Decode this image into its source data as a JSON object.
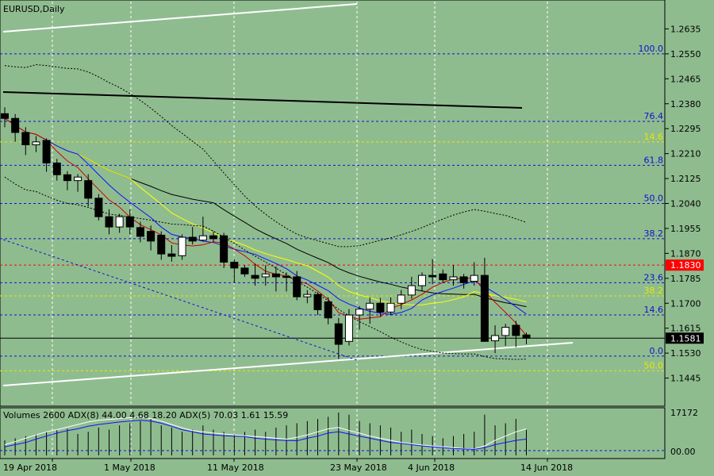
{
  "chart_data": {
    "type": "candlestick",
    "title": "EURUSD,Daily",
    "colors": {
      "background": "#8fbc8f",
      "bull_fill": "#ffffff",
      "bear_fill": "#000000",
      "fib_blue": "#1010d0",
      "fib_yellow": "#e8e800",
      "ma_red": "#d00000",
      "ma_blue": "#1010ff",
      "ma_yellow": "#ffff00",
      "ma_black": "#000000",
      "current_price": "#ff0000",
      "channel": "#ffffff"
    },
    "price_axis": {
      "ticks": [
        "1.2635",
        "1.2550",
        "1.2465",
        "1.2380",
        "1.2295",
        "1.2210",
        "1.2125",
        "1.2040",
        "1.1955",
        "1.1870",
        "1.1785",
        "1.1700",
        "1.1615",
        "1.1530",
        "1.1445"
      ],
      "range": [
        1.136,
        1.272
      ]
    },
    "date_labels": [
      "19 Apr 2018",
      "1 May 2018",
      "11 May 2018",
      "23 May 2018",
      "4 Jun 2018",
      "14 Jun 2018"
    ],
    "candles": [
      {
        "o": 1.2346,
        "h": 1.2368,
        "l": 1.23,
        "c": 1.233
      },
      {
        "o": 1.233,
        "h": 1.2345,
        "l": 1.225,
        "c": 1.2282
      },
      {
        "o": 1.2282,
        "h": 1.23,
        "l": 1.2205,
        "c": 1.224
      },
      {
        "o": 1.224,
        "h": 1.227,
        "l": 1.2215,
        "c": 1.225
      },
      {
        "o": 1.2255,
        "h": 1.2262,
        "l": 1.2148,
        "c": 1.2178
      },
      {
        "o": 1.2178,
        "h": 1.2192,
        "l": 1.2118,
        "c": 1.2138
      },
      {
        "o": 1.2138,
        "h": 1.215,
        "l": 1.2085,
        "c": 1.2118
      },
      {
        "o": 1.2118,
        "h": 1.214,
        "l": 1.208,
        "c": 1.213
      },
      {
        "o": 1.2118,
        "h": 1.214,
        "l": 1.203,
        "c": 1.2058
      },
      {
        "o": 1.2058,
        "h": 1.2072,
        "l": 1.1982,
        "c": 1.1995
      },
      {
        "o": 1.1995,
        "h": 1.202,
        "l": 1.1935,
        "c": 1.196
      },
      {
        "o": 1.196,
        "h": 1.2005,
        "l": 1.194,
        "c": 1.1995
      },
      {
        "o": 1.1995,
        "h": 1.202,
        "l": 1.1935,
        "c": 1.196
      },
      {
        "o": 1.1958,
        "h": 1.1978,
        "l": 1.1908,
        "c": 1.1928
      },
      {
        "o": 1.1945,
        "h": 1.1965,
        "l": 1.188,
        "c": 1.1912
      },
      {
        "o": 1.1932,
        "h": 1.1945,
        "l": 1.1848,
        "c": 1.1868
      },
      {
        "o": 1.1868,
        "h": 1.1898,
        "l": 1.1842,
        "c": 1.186
      },
      {
        "o": 1.1862,
        "h": 1.1935,
        "l": 1.1848,
        "c": 1.1925
      },
      {
        "o": 1.1925,
        "h": 1.196,
        "l": 1.19,
        "c": 1.1912
      },
      {
        "o": 1.1915,
        "h": 1.1995,
        "l": 1.191,
        "c": 1.193
      },
      {
        "o": 1.193,
        "h": 1.1945,
        "l": 1.191,
        "c": 1.192
      },
      {
        "o": 1.193,
        "h": 1.194,
        "l": 1.182,
        "c": 1.184
      },
      {
        "o": 1.184,
        "h": 1.185,
        "l": 1.177,
        "c": 1.182
      },
      {
        "o": 1.182,
        "h": 1.183,
        "l": 1.179,
        "c": 1.18
      },
      {
        "o": 1.1795,
        "h": 1.1835,
        "l": 1.176,
        "c": 1.1785
      },
      {
        "o": 1.179,
        "h": 1.183,
        "l": 1.176,
        "c": 1.18
      },
      {
        "o": 1.18,
        "h": 1.1825,
        "l": 1.174,
        "c": 1.179
      },
      {
        "o": 1.1792,
        "h": 1.1805,
        "l": 1.174,
        "c": 1.1788
      },
      {
        "o": 1.179,
        "h": 1.181,
        "l": 1.171,
        "c": 1.1722
      },
      {
        "o": 1.1722,
        "h": 1.1745,
        "l": 1.17,
        "c": 1.173
      },
      {
        "o": 1.173,
        "h": 1.1738,
        "l": 1.166,
        "c": 1.1678
      },
      {
        "o": 1.1705,
        "h": 1.172,
        "l": 1.1628,
        "c": 1.165
      },
      {
        "o": 1.163,
        "h": 1.165,
        "l": 1.151,
        "c": 1.156
      },
      {
        "o": 1.157,
        "h": 1.168,
        "l": 1.1556,
        "c": 1.166
      },
      {
        "o": 1.166,
        "h": 1.169,
        "l": 1.161,
        "c": 1.168
      },
      {
        "o": 1.168,
        "h": 1.172,
        "l": 1.163,
        "c": 1.17
      },
      {
        "o": 1.17,
        "h": 1.1718,
        "l": 1.1655,
        "c": 1.167
      },
      {
        "o": 1.167,
        "h": 1.172,
        "l": 1.166,
        "c": 1.17
      },
      {
        "o": 1.17,
        "h": 1.1745,
        "l": 1.168,
        "c": 1.1728
      },
      {
        "o": 1.1728,
        "h": 1.179,
        "l": 1.1715,
        "c": 1.176
      },
      {
        "o": 1.176,
        "h": 1.1805,
        "l": 1.174,
        "c": 1.1795
      },
      {
        "o": 1.1795,
        "h": 1.185,
        "l": 1.1765,
        "c": 1.179
      },
      {
        "o": 1.18,
        "h": 1.1815,
        "l": 1.177,
        "c": 1.178
      },
      {
        "o": 1.178,
        "h": 1.183,
        "l": 1.176,
        "c": 1.179
      },
      {
        "o": 1.179,
        "h": 1.18,
        "l": 1.175,
        "c": 1.177
      },
      {
        "o": 1.1775,
        "h": 1.184,
        "l": 1.176,
        "c": 1.1795
      },
      {
        "o": 1.1795,
        "h": 1.1855,
        "l": 1.157,
        "c": 1.157
      },
      {
        "o": 1.1572,
        "h": 1.1625,
        "l": 1.153,
        "c": 1.159
      },
      {
        "o": 1.159,
        "h": 1.163,
        "l": 1.1555,
        "c": 1.1618
      },
      {
        "o": 1.1625,
        "h": 1.164,
        "l": 1.155,
        "c": 1.159
      },
      {
        "o": 1.1592,
        "h": 1.16,
        "l": 1.156,
        "c": 1.1581
      }
    ],
    "fib_levels": [
      {
        "label": "100.0",
        "price": 1.255,
        "color": "fib_blue"
      },
      {
        "label": "76.4",
        "price": 1.232,
        "color": "fib_blue"
      },
      {
        "label": "14.6",
        "price": 1.225,
        "color": "fib_yellow"
      },
      {
        "label": "61.8",
        "price": 1.217,
        "color": "fib_blue"
      },
      {
        "label": "50.0",
        "price": 1.204,
        "color": "fib_blue"
      },
      {
        "label": "38.2",
        "price": 1.192,
        "color": "fib_blue"
      },
      {
        "label": "23.6",
        "price": 1.177,
        "color": "fib_blue"
      },
      {
        "label": "38.2",
        "price": 1.1725,
        "color": "fib_yellow"
      },
      {
        "label": "14.6",
        "price": 1.166,
        "color": "fib_blue"
      },
      {
        "label": "0.0",
        "price": 1.152,
        "color": "fib_blue"
      },
      {
        "label": "50.0",
        "price": 1.147,
        "color": "fib_yellow"
      }
    ],
    "current_price_label": "1.1830",
    "current_price_level": 1.183,
    "last_price_label": "1.1581",
    "last_price_level": 1.1581,
    "indicator": {
      "label": "Volumes 2600 ADX(8) 44.00 4.68 18.20 ADX(5) 70.03 1.61 15.59",
      "axis_ticks": [
        "17172",
        "00.00"
      ],
      "volumes": [
        0.35,
        0.4,
        0.45,
        0.5,
        0.55,
        0.6,
        0.62,
        0.5,
        0.55,
        0.65,
        0.6,
        0.7,
        0.75,
        0.8,
        0.85,
        0.7,
        0.65,
        0.55,
        0.6,
        0.7,
        0.6,
        0.55,
        0.5,
        0.55,
        0.6,
        0.55,
        0.65,
        0.7,
        0.75,
        0.8,
        0.85,
        0.9,
        1.0,
        0.95,
        0.8,
        0.75,
        0.7,
        0.65,
        0.55,
        0.6,
        0.5,
        0.45,
        0.4,
        0.45,
        0.5,
        0.55,
        0.95,
        0.7,
        0.75,
        0.85,
        0.6
      ],
      "adx_blue": [
        0.2,
        0.25,
        0.3,
        0.38,
        0.45,
        0.52,
        0.58,
        0.62,
        0.68,
        0.72,
        0.75,
        0.78,
        0.8,
        0.82,
        0.8,
        0.75,
        0.68,
        0.6,
        0.55,
        0.5,
        0.48,
        0.46,
        0.45,
        0.44,
        0.4,
        0.38,
        0.36,
        0.35,
        0.34,
        0.4,
        0.45,
        0.52,
        0.55,
        0.5,
        0.45,
        0.4,
        0.35,
        0.3,
        0.28,
        0.25,
        0.22,
        0.2,
        0.18,
        0.16,
        0.15,
        0.14,
        0.18,
        0.25,
        0.3,
        0.35,
        0.38
      ],
      "adx_white": [
        0.25,
        0.32,
        0.4,
        0.48,
        0.55,
        0.6,
        0.66,
        0.72,
        0.78,
        0.82,
        0.84,
        0.86,
        0.88,
        0.9,
        0.86,
        0.8,
        0.72,
        0.64,
        0.58,
        0.55,
        0.52,
        0.5,
        0.48,
        0.46,
        0.44,
        0.42,
        0.4,
        0.38,
        0.42,
        0.48,
        0.55,
        0.62,
        0.65,
        0.58,
        0.52,
        0.45,
        0.4,
        0.35,
        0.3,
        0.27,
        0.24,
        0.22,
        0.2,
        0.18,
        0.16,
        0.15,
        0.22,
        0.35,
        0.45,
        0.55,
        0.62
      ]
    }
  }
}
